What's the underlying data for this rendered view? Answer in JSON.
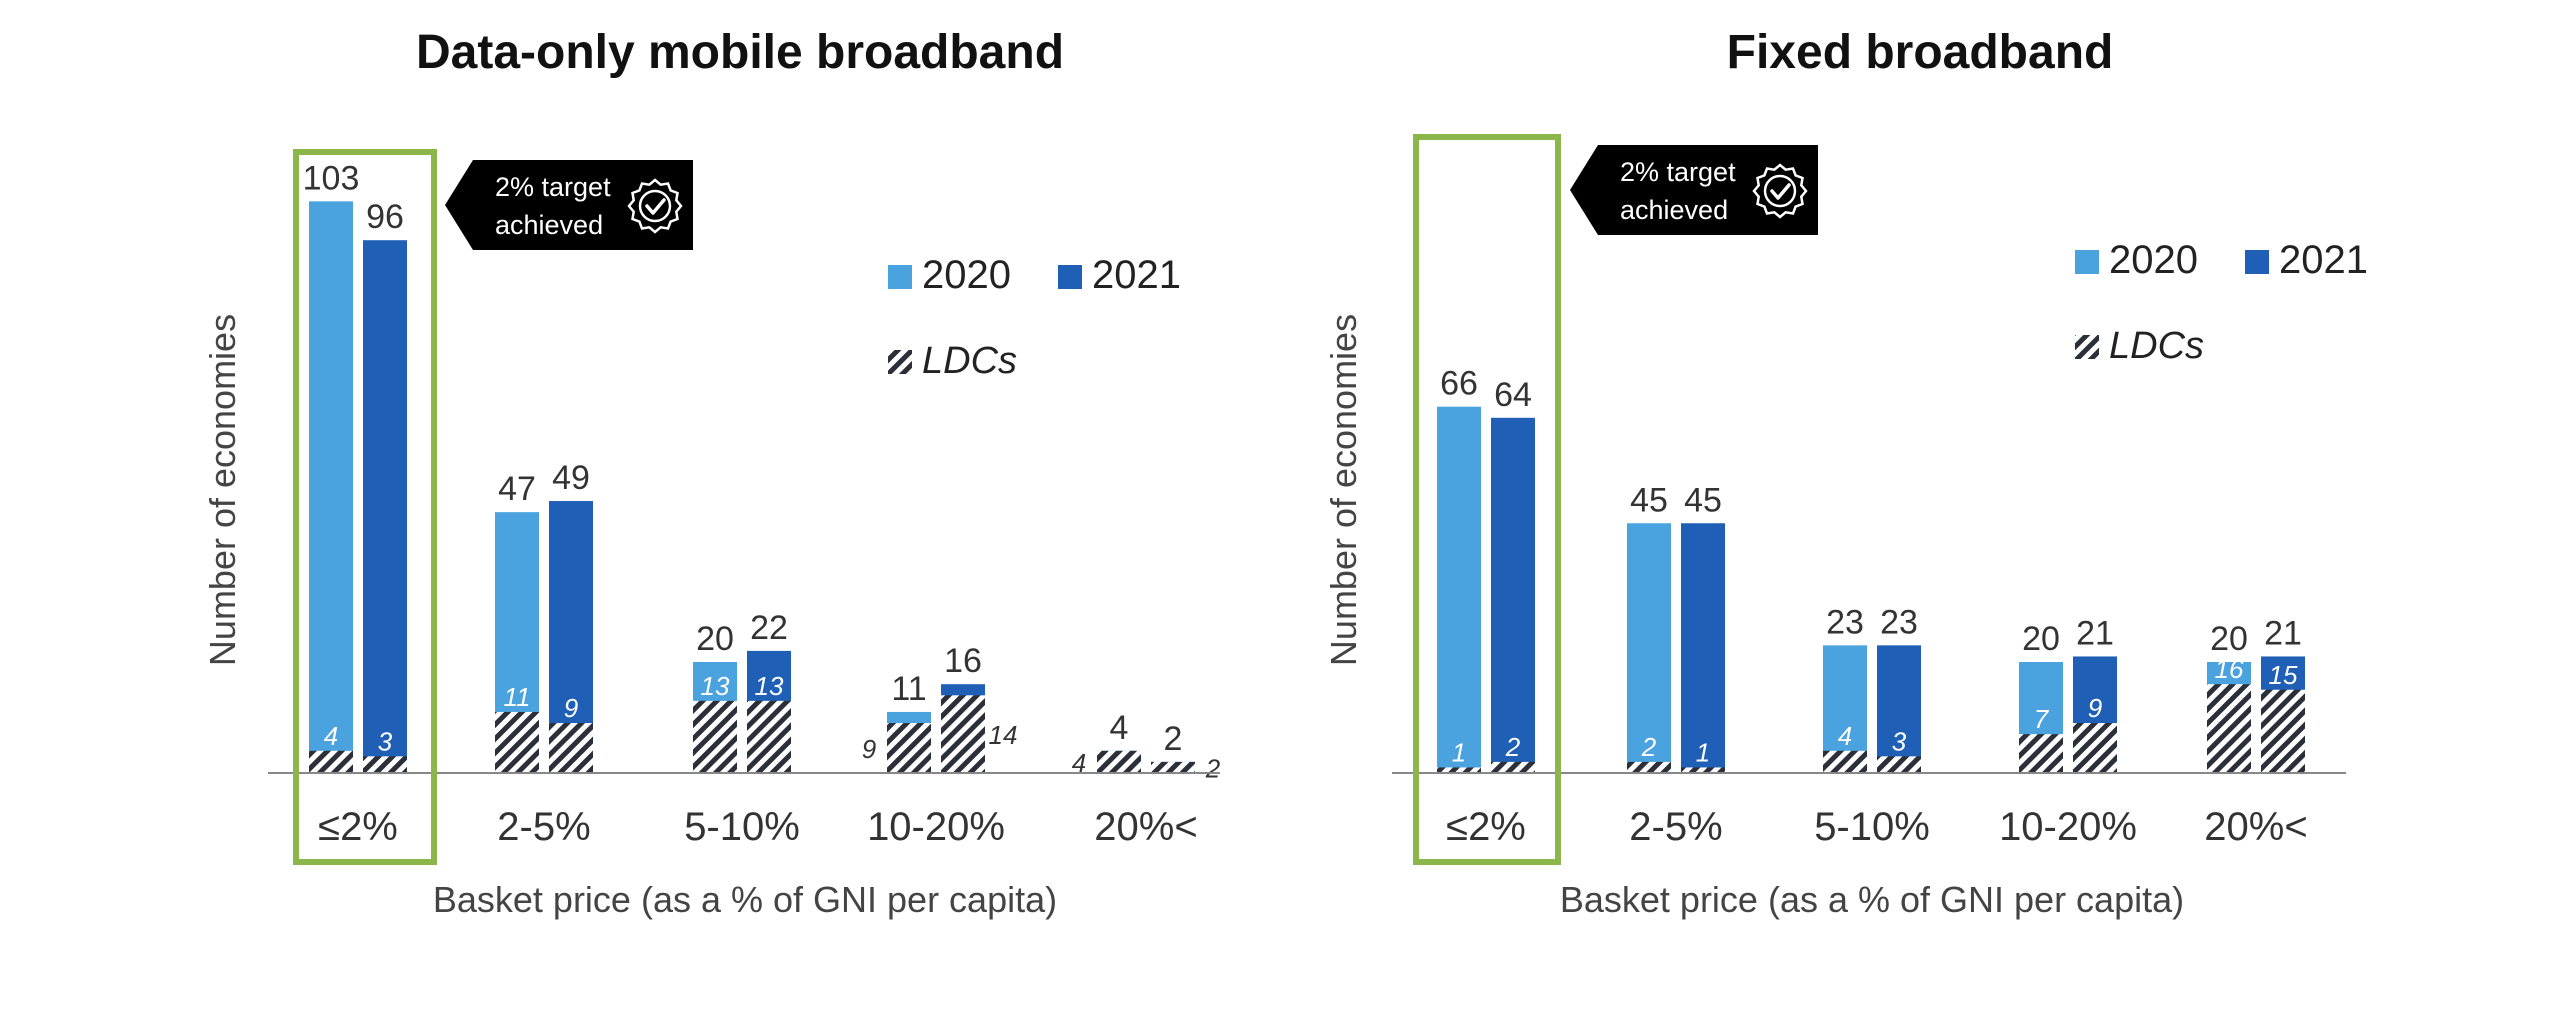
{
  "colors": {
    "series_2020": "#4aa3df",
    "series_2021": "#1f5fb5",
    "target_box": "#8ab64a",
    "badge_bg": "#000000",
    "baseline": "#888888"
  },
  "legend": {
    "series_2020": "2020",
    "series_2021": "2021",
    "ldc": "LDCs"
  },
  "badge": {
    "line1": "2% target",
    "line2": "achieved",
    "icon": "check-seal-icon"
  },
  "chart_data": [
    {
      "type": "bar",
      "title": "Data-only mobile broadband",
      "xlabel": "Basket price (as a % of GNI per capita)",
      "ylabel": "Number of economies",
      "categories": [
        "≤2%",
        "2-5%",
        "5-10%",
        "10-20%",
        "20%<"
      ],
      "ylim": [
        0,
        110
      ],
      "series": [
        {
          "name": "2020",
          "values": [
            103,
            47,
            20,
            11,
            4
          ],
          "ldc_values": [
            4,
            11,
            13,
            9,
            4
          ]
        },
        {
          "name": "2021",
          "values": [
            96,
            49,
            22,
            16,
            2
          ],
          "ldc_values": [
            3,
            9,
            13,
            14,
            2
          ]
        }
      ],
      "highlighted_category": "≤2%"
    },
    {
      "type": "bar",
      "title": "Fixed broadband",
      "xlabel": "Basket price (as a % of GNI per capita)",
      "ylabel": "Number of economies",
      "categories": [
        "≤2%",
        "2-5%",
        "5-10%",
        "10-20%",
        "20%<"
      ],
      "ylim": [
        0,
        110
      ],
      "series": [
        {
          "name": "2020",
          "values": [
            66,
            45,
            23,
            20,
            20
          ],
          "ldc_values": [
            1,
            2,
            4,
            7,
            16
          ]
        },
        {
          "name": "2021",
          "values": [
            64,
            45,
            23,
            21,
            21
          ],
          "ldc_values": [
            2,
            1,
            3,
            9,
            15
          ]
        }
      ],
      "highlighted_category": "≤2%"
    }
  ]
}
